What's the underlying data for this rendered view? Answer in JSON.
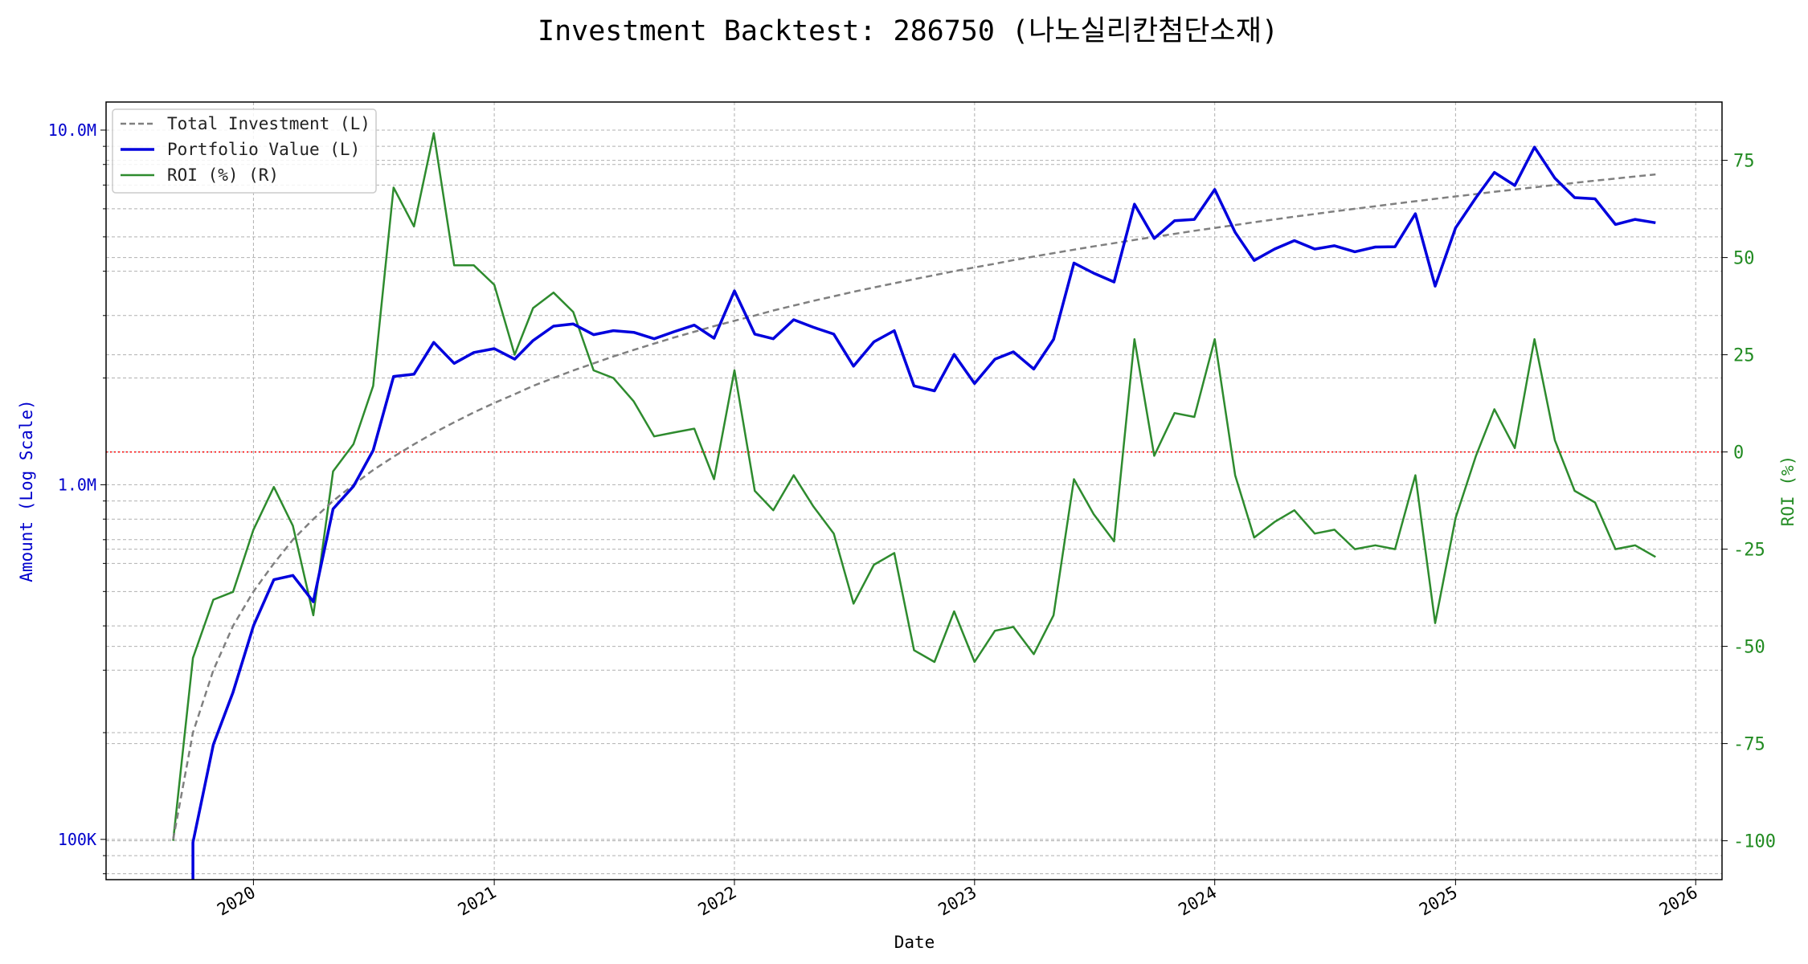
{
  "chart_data": {
    "type": "line",
    "title": "Investment Backtest: 286750 (나노실리칸첨단소재)",
    "xlabel": "Date",
    "ylabel_left": "Amount (Log Scale)",
    "ylabel_right": "ROI (%)",
    "left_scale": "log",
    "left_ylim": [
      77000,
      12000000
    ],
    "right_ylim": [
      -110,
      90
    ],
    "x_range": [
      "2019-05-22",
      "2026-02-10"
    ],
    "x_ticks": [
      "2020",
      "2021",
      "2022",
      "2023",
      "2024",
      "2025",
      "2026"
    ],
    "left_ticks": [
      {
        "value": 100000,
        "label": "100K"
      },
      {
        "value": 1000000,
        "label": "1.0M"
      },
      {
        "value": 10000000,
        "label": "10.0M"
      }
    ],
    "right_ticks": [
      "75",
      "50",
      "25",
      "0",
      "-25",
      "-50",
      "-75",
      "-100"
    ],
    "grid": true,
    "legend_position": "top-left",
    "reference_line": {
      "axis": "right",
      "value": 0,
      "color": "#ff0000",
      "style": "dotted"
    },
    "colors": {
      "total_investment": "#808080",
      "portfolio_value": "#0000dd",
      "roi": "#2e8b2e",
      "left_axis": "#0000cc",
      "right_axis": "#228b22"
    },
    "series": [
      {
        "name": "Total Investment (L)",
        "axis": "left",
        "style": "dashed",
        "dates": [
          "2019-09-01",
          "2019-10-01",
          "2019-11-01",
          "2019-12-01",
          "2020-01-01",
          "2020-02-01",
          "2020-03-01",
          "2020-04-01",
          "2020-05-01",
          "2020-06-01",
          "2020-07-01",
          "2020-08-01",
          "2020-09-01",
          "2020-10-01",
          "2020-11-01",
          "2020-12-01",
          "2021-01-01",
          "2021-02-01",
          "2021-03-01",
          "2021-04-01",
          "2021-05-01",
          "2021-06-01",
          "2021-07-01",
          "2021-08-01",
          "2021-09-01",
          "2021-10-01",
          "2021-11-01",
          "2021-12-01",
          "2022-01-01",
          "2022-02-01",
          "2022-03-01",
          "2022-04-01",
          "2022-05-01",
          "2022-06-01",
          "2022-07-01",
          "2022-08-01",
          "2022-09-01",
          "2022-10-01",
          "2022-11-01",
          "2022-12-01",
          "2023-01-01",
          "2023-02-01",
          "2023-03-01",
          "2023-04-01",
          "2023-05-01",
          "2023-06-01",
          "2023-07-01",
          "2023-08-01",
          "2023-09-01",
          "2023-10-01",
          "2023-11-01",
          "2023-12-01",
          "2024-01-01",
          "2024-02-01",
          "2024-03-01",
          "2024-04-01",
          "2024-05-01",
          "2024-06-01",
          "2024-07-01",
          "2024-08-01",
          "2024-09-01",
          "2024-10-01",
          "2024-11-01",
          "2024-12-01",
          "2025-01-01",
          "2025-02-01",
          "2025-03-01",
          "2025-04-01",
          "2025-05-01",
          "2025-06-01",
          "2025-07-01",
          "2025-08-01",
          "2025-09-01",
          "2025-10-01",
          "2025-11-01"
        ],
        "values": [
          100000,
          200000,
          300000,
          400000,
          500000,
          600000,
          700000,
          800000,
          900000,
          1000000,
          1100000,
          1200000,
          1300000,
          1400000,
          1500000,
          1600000,
          1700000,
          1800000,
          1900000,
          2000000,
          2100000,
          2200000,
          2300000,
          2400000,
          2500000,
          2600000,
          2700000,
          2800000,
          2900000,
          3000000,
          3100000,
          3200000,
          3300000,
          3400000,
          3500000,
          3600000,
          3700000,
          3800000,
          3900000,
          4000000,
          4100000,
          4200000,
          4300000,
          4400000,
          4500000,
          4600000,
          4700000,
          4800000,
          4900000,
          5000000,
          5100000,
          5200000,
          5300000,
          5400000,
          5500000,
          5600000,
          5700000,
          5800000,
          5900000,
          6000000,
          6100000,
          6200000,
          6300000,
          6400000,
          6500000,
          6600000,
          6700000,
          6800000,
          6900000,
          7000000,
          7100000,
          7200000,
          7300000,
          7400000,
          7500000
        ]
      },
      {
        "name": "Portfolio Value (L)",
        "axis": "left",
        "style": "solid",
        "dates": [
          "2019-10-01",
          "2019-11-01",
          "2019-12-01",
          "2020-01-01",
          "2020-02-01",
          "2020-03-01",
          "2020-04-01",
          "2020-05-01",
          "2020-06-01",
          "2020-07-01",
          "2020-08-01",
          "2020-09-01",
          "2020-10-01",
          "2020-11-01",
          "2020-12-01",
          "2021-01-01",
          "2021-02-01",
          "2021-03-01",
          "2021-04-01",
          "2021-05-01",
          "2021-06-01",
          "2021-07-01",
          "2021-08-01",
          "2021-09-01",
          "2021-10-01",
          "2021-11-01",
          "2021-12-01",
          "2022-01-01",
          "2022-02-01",
          "2022-03-01",
          "2022-04-01",
          "2022-05-01",
          "2022-06-01",
          "2022-07-01",
          "2022-08-01",
          "2022-09-01",
          "2022-10-01",
          "2022-11-01",
          "2022-12-01",
          "2023-01-01",
          "2023-02-01",
          "2023-03-01",
          "2023-04-01",
          "2023-05-01",
          "2023-06-01",
          "2023-07-01",
          "2023-08-01",
          "2023-09-01",
          "2023-10-01",
          "2023-11-01",
          "2023-12-01",
          "2024-01-01",
          "2024-02-01",
          "2024-03-01",
          "2024-04-01",
          "2024-05-01",
          "2024-06-01",
          "2024-07-01",
          "2024-08-01",
          "2024-09-01",
          "2024-10-01",
          "2024-11-01",
          "2024-12-01",
          "2025-01-01",
          "2025-02-01",
          "2025-03-01",
          "2025-04-01",
          "2025-05-01",
          "2025-06-01",
          "2025-07-01",
          "2025-08-01",
          "2025-09-01",
          "2025-10-01",
          "2025-11-01"
        ],
        "values": [
          98000,
          185000,
          260000,
          400000,
          540000,
          555000,
          468000,
          855000,
          990000,
          1250000,
          2020000,
          2050000,
          2520000,
          2200000,
          2360000,
          2420000,
          2260000,
          2550000,
          2800000,
          2840000,
          2650000,
          2720000,
          2690000,
          2580000,
          2700000,
          2820000,
          2590000,
          3520000,
          2660000,
          2580000,
          2920000,
          2780000,
          2660000,
          2160000,
          2530000,
          2720000,
          1900000,
          1840000,
          2330000,
          1930000,
          2260000,
          2370000,
          2120000,
          2570000,
          4220000,
          3950000,
          3730000,
          6180000,
          4950000,
          5550000,
          5600000,
          6800000,
          5150000,
          4290000,
          4620000,
          4880000,
          4620000,
          4720000,
          4540000,
          4680000,
          4690000,
          5810000,
          3630000,
          5300000,
          6450000,
          7600000,
          6980000,
          8950000,
          7320000,
          6450000,
          6400000,
          5420000,
          5600000,
          5480000
        ]
      },
      {
        "name": "ROI (%) (R)",
        "axis": "right",
        "style": "solid",
        "dates": [
          "2019-09-01",
          "2019-10-01",
          "2019-11-01",
          "2019-12-01",
          "2020-01-01",
          "2020-02-01",
          "2020-03-01",
          "2020-04-01",
          "2020-05-01",
          "2020-06-01",
          "2020-07-01",
          "2020-08-01",
          "2020-09-01",
          "2020-10-01",
          "2020-11-01",
          "2020-12-01",
          "2021-01-01",
          "2021-02-01",
          "2021-03-01",
          "2021-04-01",
          "2021-05-01",
          "2021-06-01",
          "2021-07-01",
          "2021-08-01",
          "2021-09-01",
          "2021-10-01",
          "2021-11-01",
          "2021-12-01",
          "2022-01-01",
          "2022-02-01",
          "2022-03-01",
          "2022-04-01",
          "2022-05-01",
          "2022-06-01",
          "2022-07-01",
          "2022-08-01",
          "2022-09-01",
          "2022-10-01",
          "2022-11-01",
          "2022-12-01",
          "2023-01-01",
          "2023-02-01",
          "2023-03-01",
          "2023-04-01",
          "2023-05-01",
          "2023-06-01",
          "2023-07-01",
          "2023-08-01",
          "2023-09-01",
          "2023-10-01",
          "2023-11-01",
          "2023-12-01",
          "2024-01-01",
          "2024-02-01",
          "2024-03-01",
          "2024-04-01",
          "2024-05-01",
          "2024-06-01",
          "2024-07-01",
          "2024-08-01",
          "2024-09-01",
          "2024-10-01",
          "2024-11-01",
          "2024-12-01",
          "2025-01-01",
          "2025-02-01",
          "2025-03-01",
          "2025-04-01",
          "2025-05-01",
          "2025-06-01",
          "2025-07-01",
          "2025-08-01",
          "2025-09-01",
          "2025-10-01",
          "2025-11-01"
        ],
        "values": [
          -100,
          -53,
          -38,
          -36,
          -20,
          -9,
          -19,
          -42,
          -5,
          2,
          17,
          68,
          58,
          82,
          48,
          48,
          43,
          25,
          37,
          41,
          36,
          21,
          19,
          13,
          4,
          5,
          6,
          -7,
          21,
          -10,
          -15,
          -6,
          -14,
          -21,
          -39,
          -29,
          -26,
          -51,
          -54,
          -41,
          -54,
          -46,
          -45,
          -52,
          -42,
          -7,
          -16,
          -23,
          29,
          -1,
          10,
          9,
          29,
          -6,
          -22,
          -18,
          -15,
          -21,
          -20,
          -25,
          -24,
          -25,
          -6,
          -44,
          -17,
          -1,
          11,
          1,
          29,
          3,
          -10,
          -13,
          -25,
          -24,
          -27
        ]
      }
    ]
  }
}
